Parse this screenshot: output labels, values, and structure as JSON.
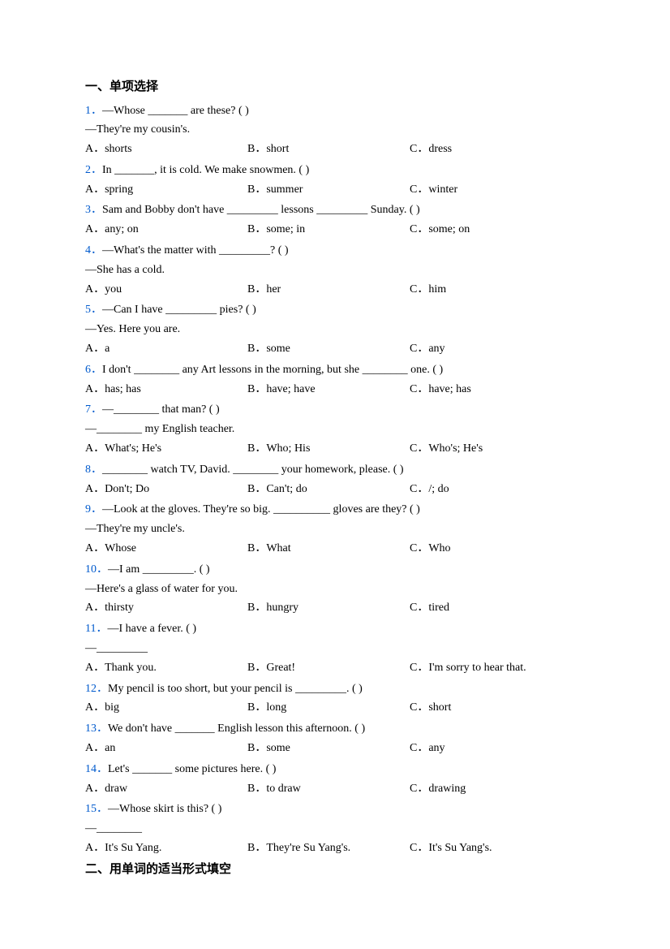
{
  "section1": {
    "heading": "一、单项选择",
    "questions": [
      {
        "num": "1．",
        "stem": "—Whose _______ are these? (    )",
        "followup": "—They're my cousin's.",
        "choices": [
          "A．shorts",
          "B．short",
          "C．dress"
        ]
      },
      {
        "num": "2．",
        "stem": "In _______, it is cold. We make snowmen. (    )",
        "choices": [
          "A．spring",
          "B．summer",
          "C．winter"
        ]
      },
      {
        "num": "3．",
        "stem": "Sam and Bobby don't have _________ lessons _________ Sunday. (    )",
        "choices": [
          "A．any; on",
          "B．some; in",
          "C．some; on"
        ]
      },
      {
        "num": "4．",
        "stem": "—What's the matter with _________? (    )",
        "followup": "—She has a cold.",
        "choices": [
          "A．you",
          "B．her",
          "C．him"
        ]
      },
      {
        "num": "5．",
        "stem": "—Can I have _________ pies? (    )",
        "followup": "—Yes. Here you are.",
        "choices": [
          "A．a",
          "B．some",
          "C．any"
        ]
      },
      {
        "num": "6．",
        "stem": "I don't ________ any Art lessons in the morning, but she ________ one. (    )",
        "choices": [
          "A．has; has",
          "B．have; have",
          "C．have; has"
        ]
      },
      {
        "num": "7．",
        "stem": "—________ that man? (    )",
        "followup": "—________ my English teacher.",
        "choices": [
          "A．What's; He's",
          "B．Who; His",
          "C．Who's; He's"
        ]
      },
      {
        "num": "8．",
        "stem": "________ watch TV, David. ________ your homework, please. (   )",
        "choices": [
          "A．Don't; Do",
          "B．Can't; do",
          "C．/; do"
        ]
      },
      {
        "num": "9．",
        "stem": "—Look at the gloves. They're so big. __________ gloves are they? (    )",
        "followup": "—They're my uncle's.",
        "choices": [
          "A．Whose",
          "B．What",
          "C．Who"
        ]
      },
      {
        "num": "10．",
        "stem": "—I am _________. (    )",
        "followup": "—Here's a glass of water for you.",
        "choices": [
          "A．thirsty",
          "B．hungry",
          "C．tired"
        ]
      },
      {
        "num": "11．",
        "stem": "—I have a fever. (   )",
        "followup": "—_________",
        "choices": [
          "A．Thank you.",
          "B．Great!",
          "C．I'm sorry to hear that."
        ]
      },
      {
        "num": "12．",
        "stem": "My pencil is too short, but your pencil is _________. (    )",
        "choices": [
          "A．big",
          "B．long",
          "C．short"
        ]
      },
      {
        "num": "13．",
        "stem": "We don't have _______ English lesson this afternoon. (   )",
        "choices": [
          "A．an",
          "B．some",
          "C．any"
        ]
      },
      {
        "num": "14．",
        "stem": "Let's _______ some pictures here. (   )",
        "choices": [
          "A．draw",
          "B．to draw",
          "C．drawing"
        ]
      },
      {
        "num": "15．",
        "stem": "—Whose skirt is this? (    )",
        "followup": "—________",
        "choices": [
          "A．It's Su Yang.",
          "B．They're Su Yang's.",
          "C．It's Su Yang's."
        ]
      }
    ]
  },
  "section2": {
    "heading": "二、用单词的适当形式填空"
  },
  "colors": {
    "qnum": "#005acd",
    "text": "#000000",
    "background": "#ffffff"
  },
  "layout": {
    "choice_col_widths": [
      200,
      200
    ]
  }
}
